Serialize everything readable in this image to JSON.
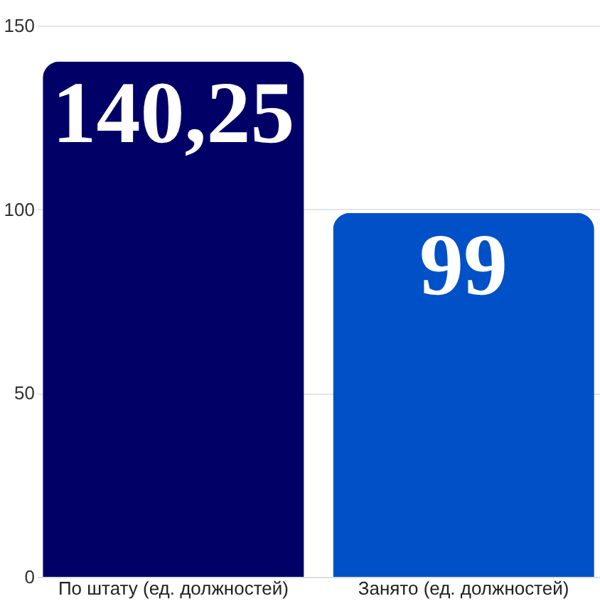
{
  "chart_data": {
    "type": "bar",
    "categories": [
      "По штату (ед. должностей)",
      "Занято (ед. должностей)"
    ],
    "values": [
      140.25,
      99
    ],
    "colors": [
      "#000066",
      "#0050c8"
    ],
    "value_labels": [
      "140,25",
      "99"
    ],
    "ylim": [
      0,
      150
    ],
    "yticks": [
      0,
      50,
      100,
      150
    ],
    "grid": "y"
  }
}
